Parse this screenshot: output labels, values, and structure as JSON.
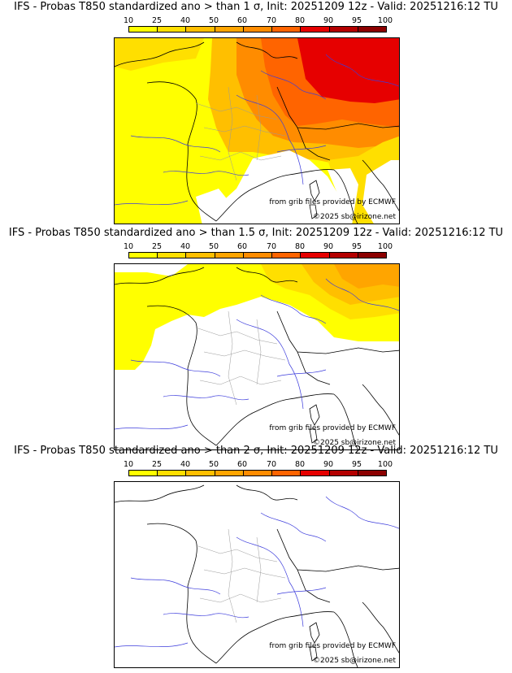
{
  "colorbar": {
    "ticks": [
      "10",
      "25",
      "40",
      "50",
      "60",
      "70",
      "80",
      "90",
      "95",
      "100"
    ],
    "colors": [
      "#ffff00",
      "#ffdf00",
      "#ffbf00",
      "#ffa500",
      "#ff8c00",
      "#ff6400",
      "#e60000",
      "#b40000",
      "#8c0000"
    ]
  },
  "panels": [
    {
      "title": "IFS - Probas T850  standardized ano > than 1 σ, Init: 20251209 12z - Valid: 20251216:12 TU",
      "credit_source": "from grib files provided by ECMWF",
      "credit_copyright": "©2025 sb@irizone.net"
    },
    {
      "title": "IFS - Probas T850  standardized ano > than 1.5 σ, Init: 20251209 12z - Valid: 20251216:12 TU",
      "credit_source": "from grib files provided by ECMWF",
      "credit_copyright": "©2025 sb@irizone.net"
    },
    {
      "title": "IFS - Probas T850  standardized ano > than 2 σ, Init: 20251209 12z - Valid: 20251216:12 TU",
      "credit_source": "from grib files provided by ECMWF",
      "credit_copyright": "©2025 sb@irizone.net"
    }
  ],
  "map_colors": {
    "coast": "#000000",
    "rivers": "#3c3cdc",
    "admin": "#9a9a9a"
  }
}
